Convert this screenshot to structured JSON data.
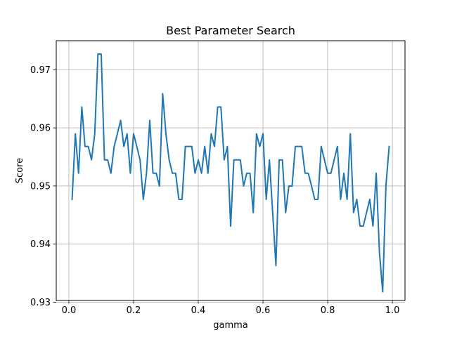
{
  "chart_data": {
    "type": "line",
    "title": "Best Parameter Search",
    "xlabel": "gamma",
    "ylabel": "Score",
    "xlim": [
      -0.039,
      1.039
    ],
    "ylim": [
      0.9303,
      0.975
    ],
    "xticks": [
      0.0,
      0.2,
      0.4,
      0.6,
      0.8,
      1.0
    ],
    "xtick_labels": [
      "0.0",
      "0.2",
      "0.4",
      "0.6",
      "0.8",
      "1.0"
    ],
    "yticks": [
      0.93,
      0.94,
      0.95,
      0.96,
      0.97
    ],
    "ytick_labels": [
      "0.93",
      "0.94",
      "0.95",
      "0.96",
      "0.97"
    ],
    "grid": true,
    "line_color": "#1f77b4",
    "series": [
      {
        "x": [
          0.01,
          0.02,
          0.03,
          0.04,
          0.05,
          0.06,
          0.07,
          0.08,
          0.09,
          0.1,
          0.11,
          0.12,
          0.13,
          0.14,
          0.15,
          0.16,
          0.17,
          0.18,
          0.19,
          0.2,
          0.21,
          0.22,
          0.23,
          0.24,
          0.25,
          0.26,
          0.27,
          0.28,
          0.29,
          0.3,
          0.31,
          0.32,
          0.33,
          0.34,
          0.35,
          0.36,
          0.37,
          0.38,
          0.39,
          0.4,
          0.41,
          0.42,
          0.43,
          0.44,
          0.45,
          0.46,
          0.47,
          0.48,
          0.49,
          0.5,
          0.51,
          0.52,
          0.53,
          0.54,
          0.55,
          0.56,
          0.57,
          0.58,
          0.59,
          0.6,
          0.61,
          0.62,
          0.63,
          0.64,
          0.65,
          0.66,
          0.67,
          0.68,
          0.69,
          0.7,
          0.71,
          0.72,
          0.73,
          0.74,
          0.75,
          0.76,
          0.77,
          0.78,
          0.79,
          0.8,
          0.81,
          0.82,
          0.83,
          0.84,
          0.85,
          0.86,
          0.87,
          0.88,
          0.89,
          0.9,
          0.91,
          0.92,
          0.93,
          0.94,
          0.95,
          0.96,
          0.97,
          0.98,
          0.99
        ],
        "values": [
          0.9477,
          0.959,
          0.9522,
          0.9636,
          0.9568,
          0.9568,
          0.9545,
          0.959,
          0.9727,
          0.9727,
          0.9545,
          0.9545,
          0.9522,
          0.9568,
          0.959,
          0.9613,
          0.9568,
          0.959,
          0.9522,
          0.959,
          0.9568,
          0.9545,
          0.9477,
          0.9522,
          0.9613,
          0.9522,
          0.9522,
          0.95,
          0.9659,
          0.959,
          0.9545,
          0.9522,
          0.9522,
          0.9477,
          0.9477,
          0.9568,
          0.9568,
          0.9568,
          0.9522,
          0.9545,
          0.9522,
          0.9568,
          0.9522,
          0.959,
          0.9568,
          0.9636,
          0.9636,
          0.9545,
          0.9568,
          0.9431,
          0.9545,
          0.9545,
          0.9545,
          0.95,
          0.9522,
          0.9522,
          0.9454,
          0.959,
          0.9568,
          0.959,
          0.9477,
          0.9545,
          0.9454,
          0.9363,
          0.9545,
          0.9545,
          0.9454,
          0.95,
          0.95,
          0.9568,
          0.9568,
          0.9568,
          0.9522,
          0.9522,
          0.95,
          0.9477,
          0.9477,
          0.9568,
          0.9545,
          0.9522,
          0.9522,
          0.9545,
          0.9568,
          0.9477,
          0.9522,
          0.9477,
          0.959,
          0.9454,
          0.9477,
          0.9431,
          0.9431,
          0.9454,
          0.9477,
          0.9431,
          0.9522,
          0.9386,
          0.9318,
          0.95,
          0.9568
        ]
      }
    ]
  }
}
